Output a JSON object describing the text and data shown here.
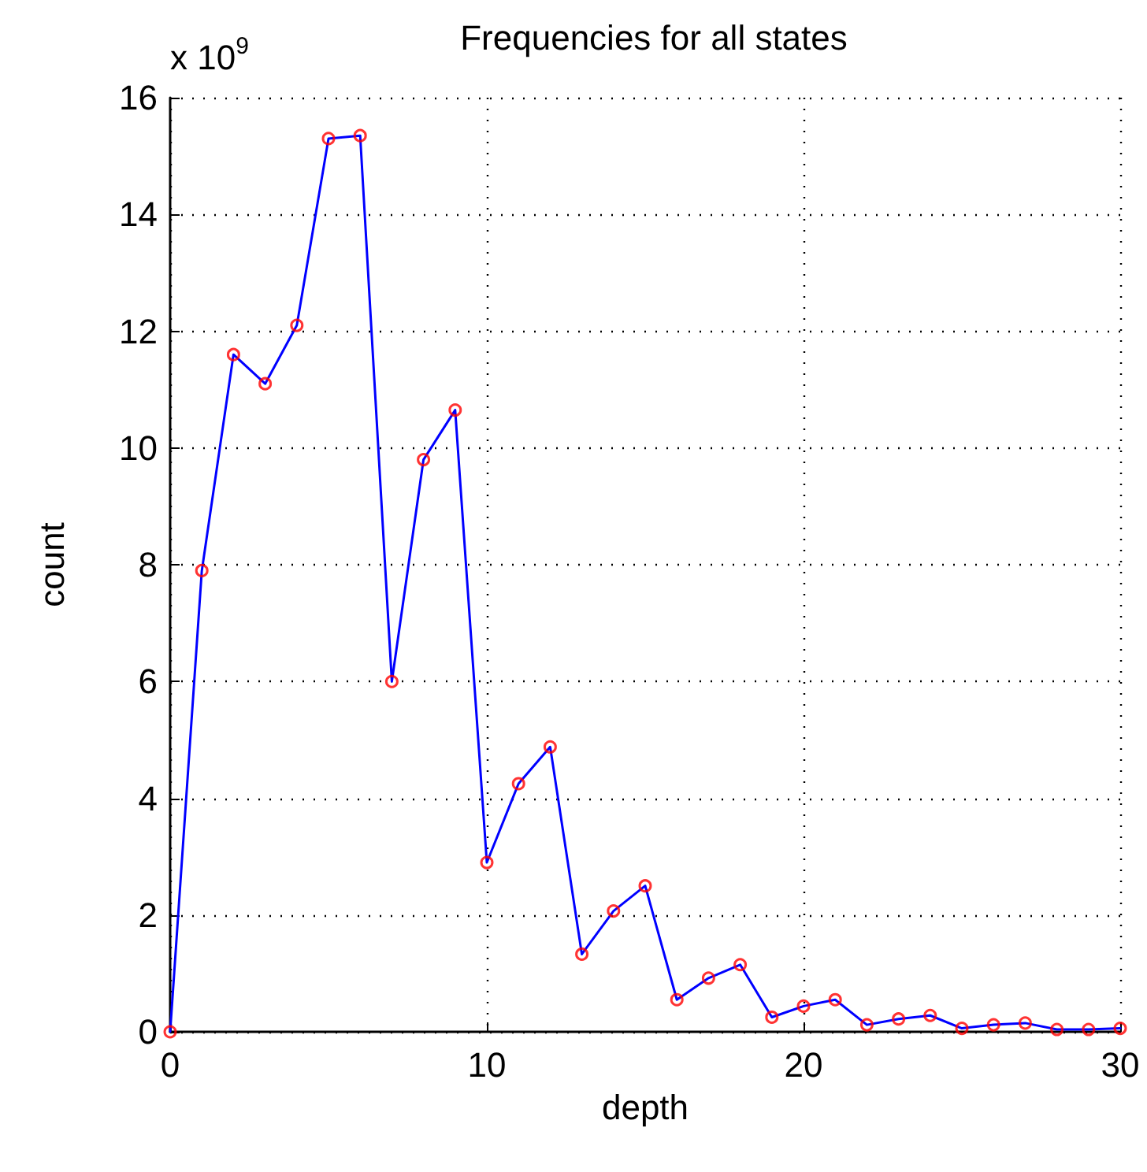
{
  "chart_data": {
    "type": "line",
    "title": "Frequencies for all states",
    "xlabel": "depth",
    "ylabel": "count",
    "annotations": [
      "x 10$^{9}$"
    ],
    "x": [
      0,
      1,
      2,
      3,
      4,
      5,
      6,
      7,
      8,
      9,
      10,
      11,
      12,
      13,
      14,
      15,
      16,
      17,
      18,
      19,
      20,
      21,
      22,
      23,
      24,
      25,
      26,
      27,
      28,
      29,
      30
    ],
    "series": [
      {
        "color": "#0000ff",
        "marker": "none",
        "values": [
          0,
          7.9,
          11.6,
          11.1,
          12.1,
          15.3,
          15.35,
          6.0,
          9.8,
          10.65,
          2.9,
          4.25,
          4.88,
          1.33,
          2.07,
          2.5,
          0.55,
          0.92,
          1.15,
          0.25,
          0.44,
          0.55,
          0.12,
          0.22,
          0.28,
          0.06,
          0.12,
          0.15,
          0.04,
          0.04,
          0.06
        ]
      },
      {
        "type": "scatter",
        "color": "#ff0000",
        "marker": "circle",
        "values": [
          0,
          7.9,
          11.6,
          11.1,
          12.1,
          15.3,
          15.35,
          6.0,
          9.8,
          10.65,
          2.9,
          4.25,
          4.88,
          1.33,
          2.07,
          2.5,
          0.55,
          0.92,
          1.15,
          0.25,
          0.44,
          0.55,
          0.12,
          0.22,
          0.28,
          0.06,
          0.12,
          0.15,
          0.04,
          0.04,
          0.06
        ]
      }
    ],
    "xlim": [
      0,
      30
    ],
    "xticks": [
      0,
      10,
      20,
      30
    ],
    "ylim": [
      0,
      16
    ],
    "yticks": [
      0,
      2,
      4,
      6,
      8,
      10,
      12,
      14,
      16
    ],
    "grid": true,
    "line_style": "solid"
  }
}
